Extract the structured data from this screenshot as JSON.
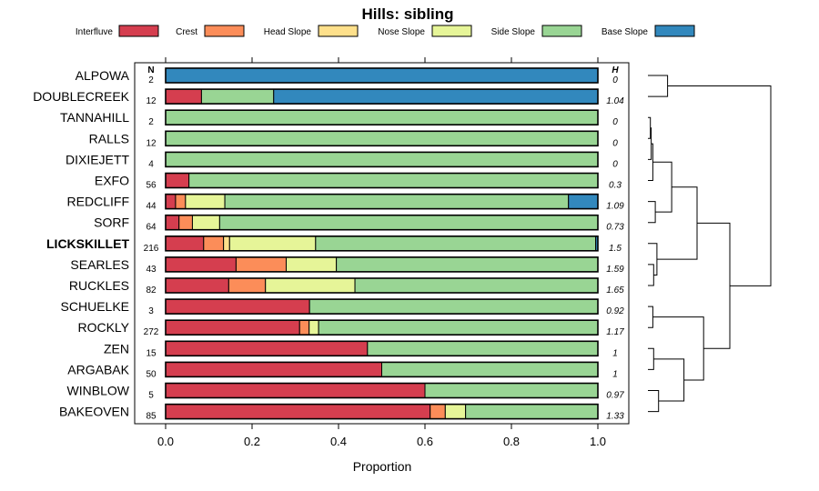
{
  "chart_data": {
    "type": "bar",
    "stacked": true,
    "orientation": "horizontal",
    "title": "Hills: sibling",
    "xlabel": "Proportion",
    "xlim": [
      0,
      1
    ],
    "xticks": [
      0,
      0.2,
      0.4,
      0.6,
      0.8,
      1
    ],
    "xtick_labels": [
      "0.0",
      "0.2",
      "0.4",
      "0.6",
      "0.8",
      "1.0"
    ],
    "n_header": "N",
    "h_header": "H",
    "highlight": "LICKSKILLET",
    "legend": [
      {
        "name": "Interfluve",
        "color": "#d53e4f"
      },
      {
        "name": "Crest",
        "color": "#fc8d59"
      },
      {
        "name": "Head Slope",
        "color": "#fee08b"
      },
      {
        "name": "Nose Slope",
        "color": "#e6f598"
      },
      {
        "name": "Side Slope",
        "color": "#99d594"
      },
      {
        "name": "Base Slope",
        "color": "#3288bd"
      }
    ],
    "rows": [
      {
        "name": "ALPOWA",
        "n": "2",
        "h": "0",
        "values": [
          0,
          0,
          0,
          0,
          0,
          1
        ]
      },
      {
        "name": "DOUBLECREEK",
        "n": "12",
        "h": "1.04",
        "values": [
          0.083,
          0,
          0,
          0,
          0.167,
          0.75
        ]
      },
      {
        "name": "TANNAHILL",
        "n": "2",
        "h": "0",
        "values": [
          0,
          0,
          0,
          0,
          1,
          0
        ]
      },
      {
        "name": "RALLS",
        "n": "12",
        "h": "0",
        "values": [
          0,
          0,
          0,
          0,
          1,
          0
        ]
      },
      {
        "name": "DIXIEJETT",
        "n": "4",
        "h": "0",
        "values": [
          0,
          0,
          0,
          0,
          1,
          0
        ]
      },
      {
        "name": "EXFO",
        "n": "56",
        "h": "0.3",
        "values": [
          0.054,
          0,
          0,
          0,
          0.946,
          0
        ]
      },
      {
        "name": "REDCLIFF",
        "n": "44",
        "h": "1.09",
        "values": [
          0.023,
          0.023,
          0,
          0.091,
          0.795,
          0.068
        ]
      },
      {
        "name": "SORF",
        "n": "64",
        "h": "0.73",
        "values": [
          0.031,
          0.031,
          0,
          0.063,
          0.875,
          0
        ]
      },
      {
        "name": "LICKSKILLET",
        "n": "216",
        "h": "1.5",
        "values": [
          0.088,
          0.046,
          0.014,
          0.199,
          0.648,
          0.005
        ]
      },
      {
        "name": "SEARLES",
        "n": "43",
        "h": "1.59",
        "values": [
          0.163,
          0.116,
          0,
          0.116,
          0.605,
          0
        ]
      },
      {
        "name": "RUCKLES",
        "n": "82",
        "h": "1.65",
        "values": [
          0.146,
          0.085,
          0,
          0.207,
          0.562,
          0
        ]
      },
      {
        "name": "SCHUELKE",
        "n": "3",
        "h": "0.92",
        "values": [
          0.333,
          0,
          0,
          0,
          0.667,
          0
        ]
      },
      {
        "name": "ROCKLY",
        "n": "272",
        "h": "1.17",
        "values": [
          0.31,
          0.022,
          0,
          0.022,
          0.646,
          0
        ]
      },
      {
        "name": "ZEN",
        "n": "15",
        "h": "1",
        "values": [
          0.467,
          0,
          0,
          0,
          0.533,
          0
        ]
      },
      {
        "name": "ARGABAK",
        "n": "50",
        "h": "1",
        "values": [
          0.5,
          0,
          0,
          0,
          0.5,
          0
        ]
      },
      {
        "name": "WINBLOW",
        "n": "5",
        "h": "0.97",
        "values": [
          0.6,
          0,
          0,
          0,
          0.4,
          0
        ]
      },
      {
        "name": "BAKEOVEN",
        "n": "85",
        "h": "1.33",
        "values": [
          0.612,
          0.035,
          0,
          0.047,
          0.306,
          0
        ]
      }
    ],
    "dendrogram": {
      "merges": [
        {
          "a": "ALPOWA",
          "b": "DOUBLECREEK",
          "height": 0.12
        },
        {
          "a": "TANNAHILL",
          "b": "RALLS",
          "height": 0.015
        },
        {
          "a": "m2",
          "b": "DIXIEJETT",
          "height": 0.02
        },
        {
          "a": "m3",
          "b": "EXFO",
          "height": 0.03
        },
        {
          "a": "REDCLIFF",
          "b": "SORF",
          "height": 0.045
        },
        {
          "a": "m4",
          "b": "m5",
          "height": 0.145
        },
        {
          "a": "SEARLES",
          "b": "RUCKLES",
          "height": 0.035
        },
        {
          "a": "LICKSKILLET",
          "b": "m7",
          "height": 0.055
        },
        {
          "a": "m6",
          "b": "m8",
          "height": 0.3
        },
        {
          "a": "SCHUELKE",
          "b": "ROCKLY",
          "height": 0.03
        },
        {
          "a": "ZEN",
          "b": "ARGABAK",
          "height": 0.035
        },
        {
          "a": "WINBLOW",
          "b": "BAKEOVEN",
          "height": 0.065
        },
        {
          "a": "m11",
          "b": "m12",
          "height": 0.22
        },
        {
          "a": "m10",
          "b": "m13",
          "height": 0.34
        },
        {
          "a": "m9",
          "b": "m14",
          "height": 0.5
        },
        {
          "a": "m1",
          "b": "m15",
          "height": 0.75
        }
      ]
    }
  }
}
